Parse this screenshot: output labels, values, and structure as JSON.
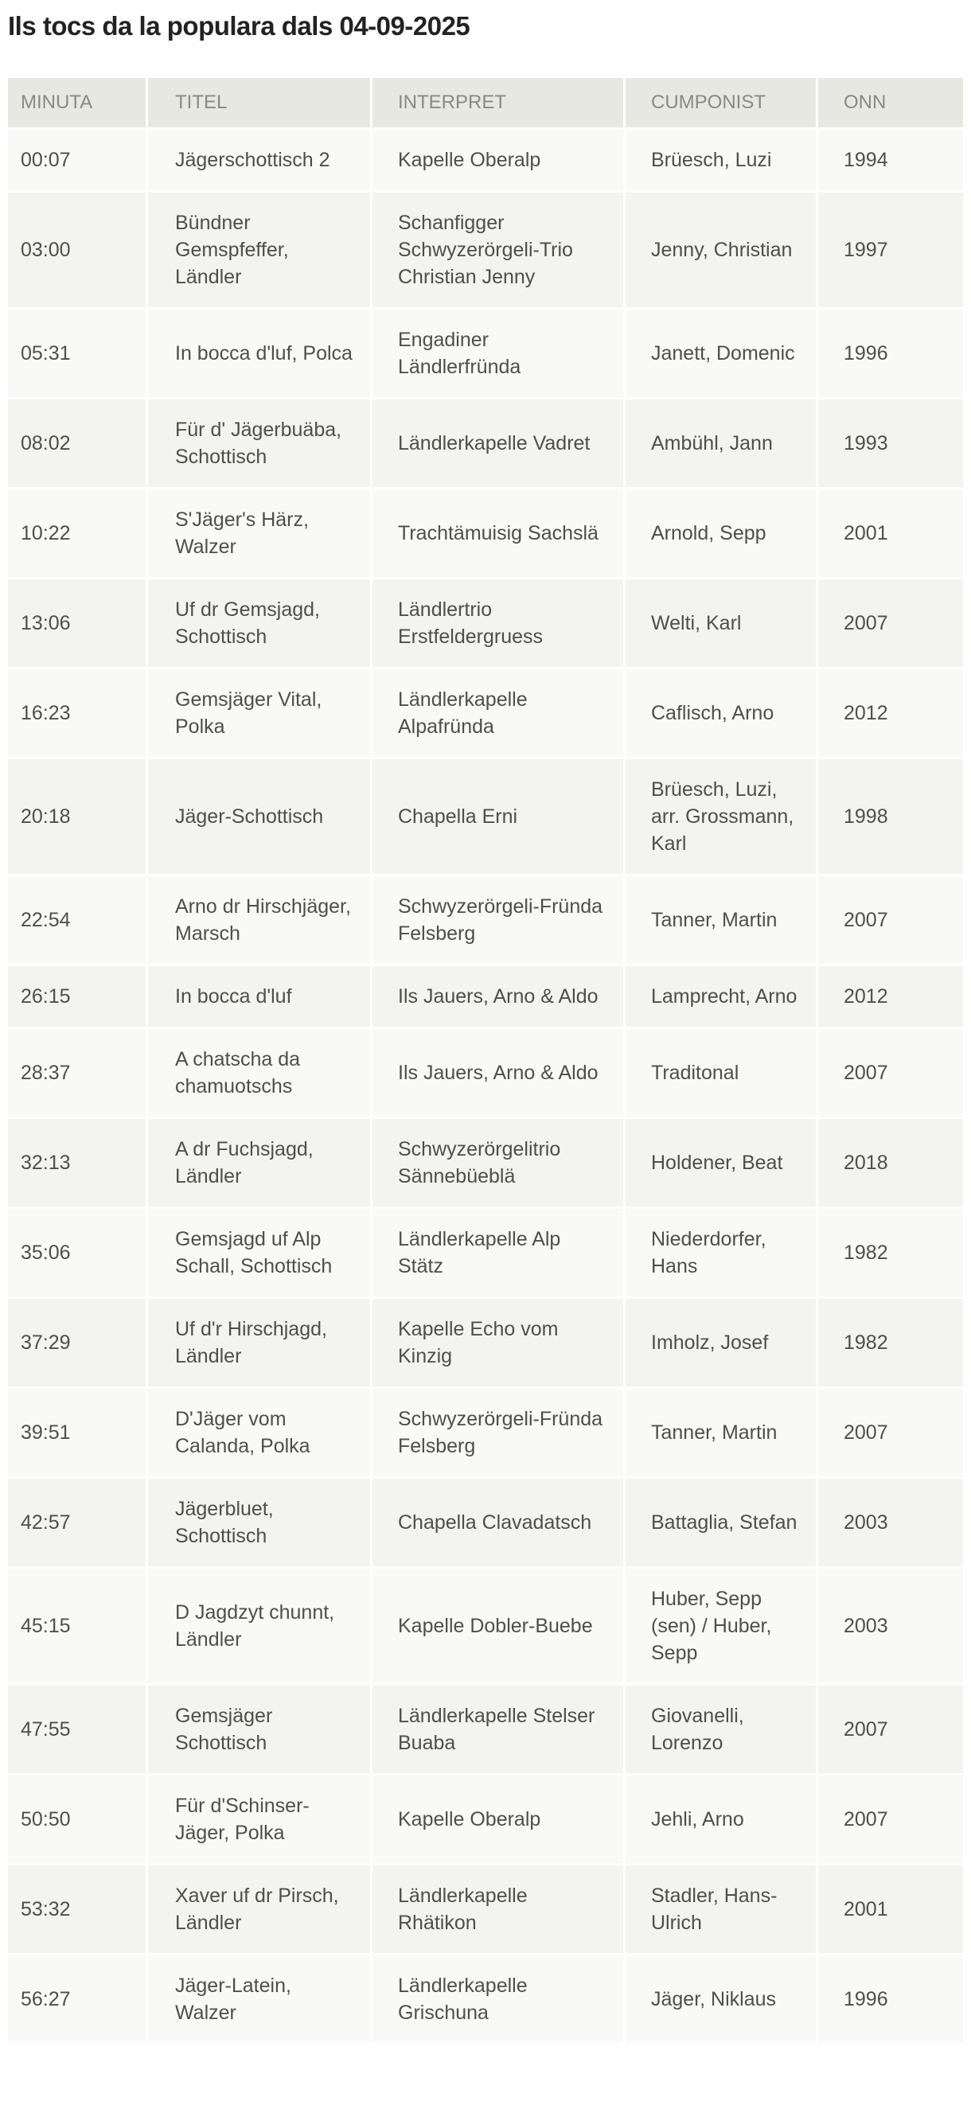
{
  "title": "Ils tocs da la populara dals 04-09-2025",
  "columns": [
    "MINUTA",
    "TITEL",
    "INTERPRET",
    "CUMPONIST",
    "ONN"
  ],
  "rows": [
    [
      "00:07",
      "Jägerschottisch 2",
      "Kapelle Oberalp",
      "Brüesch, Luzi",
      "1994"
    ],
    [
      "03:00",
      "Bündner Gemspfeffer, Ländler",
      "Schanfigger Schwyzerörgeli-Trio Christian Jenny",
      "Jenny, Christian",
      "1997"
    ],
    [
      "05:31",
      "In bocca d'luf, Polca",
      "Engadiner Ländlerfründa",
      "Janett, Domenic",
      "1996"
    ],
    [
      "08:02",
      "Für d' Jägerbuäba, Schottisch",
      "Ländlerkapelle Vadret",
      "Ambühl, Jann",
      "1993"
    ],
    [
      "10:22",
      "S'Jäger's Härz, Walzer",
      "Trachtämuisig Sachslä",
      "Arnold, Sepp",
      "2001"
    ],
    [
      "13:06",
      "Uf dr Gemsjagd, Schottisch",
      "Ländlertrio Erstfeldergruess",
      "Welti, Karl",
      "2007"
    ],
    [
      "16:23",
      "Gemsjäger Vital, Polka",
      "Ländlerkapelle Alpafründa",
      "Caflisch, Arno",
      "2012"
    ],
    [
      "20:18",
      "Jäger-Schottisch",
      "Chapella Erni",
      "Brüesch, Luzi, arr. Grossmann, Karl",
      "1998"
    ],
    [
      "22:54",
      "Arno dr Hirschjäger, Marsch",
      "Schwyzerörgeli-Fründa Felsberg",
      "Tanner, Martin",
      "2007"
    ],
    [
      "26:15",
      "In bocca d'luf",
      "Ils Jauers, Arno & Aldo",
      "Lamprecht, Arno",
      "2012"
    ],
    [
      "28:37",
      "A chatscha da chamuotschs",
      "Ils Jauers, Arno & Aldo",
      "Traditonal",
      "2007"
    ],
    [
      "32:13",
      "A dr Fuchsjagd, Ländler",
      "Schwyzerörgelitrio Sännebüeblä",
      "Holdener, Beat",
      "2018"
    ],
    [
      "35:06",
      "Gemsjagd uf Alp Schall, Schottisch",
      "Ländlerkapelle Alp Stätz",
      "Niederdorfer, Hans",
      "1982"
    ],
    [
      "37:29",
      "Uf d'r Hirschjagd, Ländler",
      "Kapelle Echo vom Kinzig",
      "Imholz, Josef",
      "1982"
    ],
    [
      "39:51",
      "D'Jäger vom Calanda, Polka",
      "Schwyzerörgeli-Fründa Felsberg",
      "Tanner, Martin",
      "2007"
    ],
    [
      "42:57",
      "Jägerbluet, Schottisch",
      "Chapella Clavadatsch",
      "Battaglia, Stefan",
      "2003"
    ],
    [
      "45:15",
      "D Jagdzyt chunnt, Ländler",
      "Kapelle Dobler-Buebe",
      "Huber, Sepp (sen) / Huber, Sepp",
      "2003"
    ],
    [
      "47:55",
      "Gemsjäger Schottisch",
      "Ländlerkapelle Stelser Buaba",
      "Giovanelli, Lorenzo",
      "2007"
    ],
    [
      "50:50",
      "Für d'Schinser-Jäger, Polka",
      "Kapelle Oberalp",
      "Jehli, Arno",
      "2007"
    ],
    [
      "53:32",
      "Xaver uf dr Pirsch, Ländler",
      "Ländlerkapelle Rhätikon",
      "Stadler, Hans-Ulrich",
      "2001"
    ],
    [
      "56:27",
      "Jäger-Latein, Walzer",
      "Ländlerkapelle Grischuna",
      "Jäger, Niklaus",
      "1996"
    ]
  ]
}
